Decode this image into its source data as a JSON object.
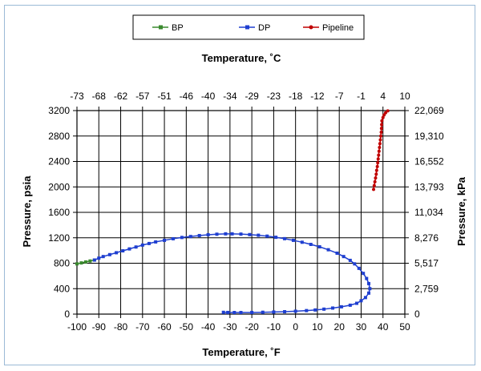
{
  "chart_data": {
    "type": "line",
    "x_bottom": {
      "label": "Temperature, ˚F",
      "range": [
        -100,
        50
      ],
      "ticks": [
        "-100",
        "-90",
        "-80",
        "-70",
        "-60",
        "-50",
        "-40",
        "-30",
        "-20",
        "-10",
        "0",
        "10",
        "20",
        "30",
        "40",
        "50"
      ]
    },
    "x_top": {
      "label": "Temperature, ˚C",
      "ticks": [
        "-73",
        "-68",
        "-62",
        "-57",
        "-51",
        "-46",
        "-40",
        "-34",
        "-29",
        "-23",
        "-18",
        "-12",
        "-7",
        "-1",
        "4",
        "10"
      ]
    },
    "y_left": {
      "label": "Pressure, psia",
      "range": [
        0,
        3200
      ],
      "ticks": [
        "0",
        "400",
        "800",
        "1200",
        "1600",
        "2000",
        "2400",
        "2800",
        "3200"
      ]
    },
    "y_right": {
      "label": "Pressure, kPa",
      "ticks": [
        "0",
        "2,759",
        "5,517",
        "8,276",
        "11,034",
        "13,793",
        "16,552",
        "19,310",
        "22,069"
      ]
    },
    "grid": true,
    "legend_position": "top-center",
    "series": [
      {
        "name": "BP",
        "color": "#3a8a2e",
        "points": [
          [
            -100,
            790
          ],
          [
            -98,
            805
          ],
          [
            -96,
            820
          ],
          [
            -94,
            835
          ],
          [
            -92,
            850
          ]
        ]
      },
      {
        "name": "DP",
        "color": "#1f3fd0",
        "points": [
          [
            -92,
            850
          ],
          [
            -90,
            880
          ],
          [
            -88,
            905
          ],
          [
            -85,
            935
          ],
          [
            -82,
            965
          ],
          [
            -79,
            995
          ],
          [
            -76,
            1025
          ],
          [
            -73,
            1055
          ],
          [
            -70,
            1085
          ],
          [
            -67,
            1110
          ],
          [
            -64,
            1135
          ],
          [
            -60,
            1160
          ],
          [
            -56,
            1185
          ],
          [
            -52,
            1205
          ],
          [
            -48,
            1220
          ],
          [
            -44,
            1235
          ],
          [
            -40,
            1248
          ],
          [
            -36,
            1256
          ],
          [
            -32,
            1262
          ],
          [
            -29,
            1262
          ],
          [
            -25,
            1258
          ],
          [
            -21,
            1250
          ],
          [
            -17,
            1240
          ],
          [
            -13,
            1226
          ],
          [
            -9,
            1208
          ],
          [
            -5,
            1186
          ],
          [
            -1,
            1160
          ],
          [
            3,
            1130
          ],
          [
            7,
            1096
          ],
          [
            11,
            1058
          ],
          [
            15,
            1012
          ],
          [
            19,
            958
          ],
          [
            22,
            905
          ],
          [
            25,
            845
          ],
          [
            27,
            790
          ],
          [
            29,
            720
          ],
          [
            31,
            640
          ],
          [
            32.5,
            560
          ],
          [
            33.5,
            480
          ],
          [
            34,
            400
          ],
          [
            33.5,
            330
          ],
          [
            32,
            260
          ],
          [
            30,
            210
          ],
          [
            28,
            170
          ],
          [
            25,
            140
          ],
          [
            21,
            115
          ],
          [
            17,
            95
          ],
          [
            13,
            78
          ],
          [
            9,
            65
          ],
          [
            5,
            55
          ],
          [
            0,
            45
          ],
          [
            -5,
            38
          ],
          [
            -10,
            33
          ],
          [
            -15,
            29
          ],
          [
            -20,
            26
          ],
          [
            -25,
            25
          ],
          [
            -28,
            25
          ],
          [
            -31,
            26
          ],
          [
            -33,
            28
          ]
        ]
      },
      {
        "name": "Pipeline",
        "color": "#c00000",
        "points": [
          [
            35.7,
            1960
          ],
          [
            36,
            2020
          ],
          [
            36.3,
            2080
          ],
          [
            36.6,
            2140
          ],
          [
            36.9,
            2200
          ],
          [
            37.1,
            2260
          ],
          [
            37.4,
            2320
          ],
          [
            37.6,
            2380
          ],
          [
            37.8,
            2440
          ],
          [
            38,
            2500
          ],
          [
            38.2,
            2560
          ],
          [
            38.4,
            2620
          ],
          [
            38.6,
            2680
          ],
          [
            38.8,
            2740
          ],
          [
            39,
            2800
          ],
          [
            39.2,
            2860
          ],
          [
            39.3,
            2920
          ],
          [
            39.4,
            2980
          ],
          [
            39.5,
            3040
          ],
          [
            40,
            3090
          ],
          [
            40.5,
            3130
          ],
          [
            41.2,
            3165
          ],
          [
            42.2,
            3195
          ]
        ]
      }
    ]
  }
}
